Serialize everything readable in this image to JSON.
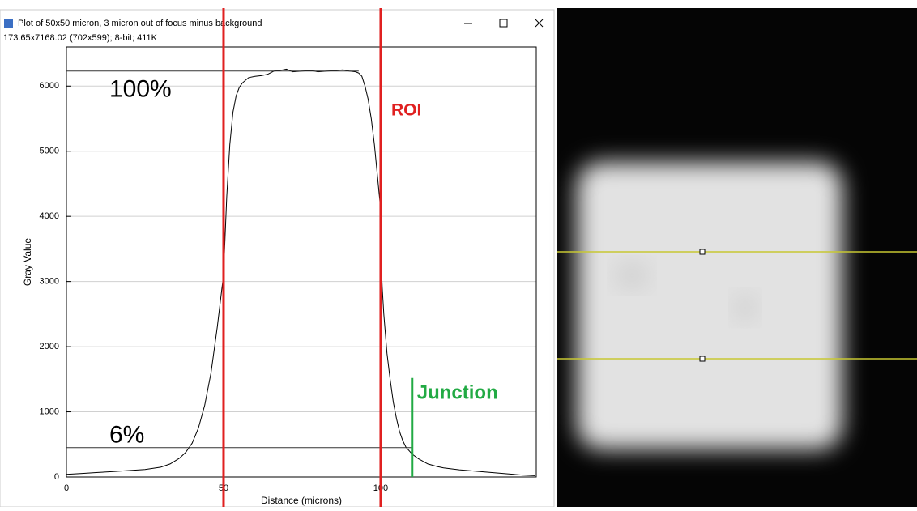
{
  "window": {
    "title": "Plot of 50x50 micron, 3 micron out of focus minus background",
    "info": "173.65x7168.02  (702x599); 8-bit; 411K"
  },
  "chart_data": {
    "type": "line",
    "xlabel": "Distance (microns)",
    "ylabel": "Gray Value",
    "color": "#000000",
    "x": [
      0,
      5,
      10,
      15,
      20,
      25,
      30,
      33,
      36,
      38,
      40,
      42,
      44,
      46,
      48,
      49.5,
      50,
      50.5,
      51,
      52,
      53,
      54,
      55,
      56,
      58,
      60,
      62,
      64,
      66,
      68,
      70,
      72,
      75,
      78,
      80,
      83,
      86,
      88,
      90,
      92,
      93,
      94,
      95,
      96,
      97,
      98,
      99,
      99.8,
      100,
      100.5,
      101,
      102,
      103,
      104,
      105,
      106,
      107,
      108,
      110,
      112,
      115,
      118,
      120,
      125,
      130,
      135,
      140,
      145,
      149
    ],
    "values": [
      40,
      55,
      70,
      85,
      100,
      115,
      150,
      200,
      290,
      380,
      520,
      750,
      1100,
      1600,
      2300,
      2900,
      3100,
      3700,
      4300,
      5100,
      5600,
      5850,
      5980,
      6050,
      6130,
      6150,
      6160,
      6180,
      6230,
      6240,
      6260,
      6220,
      6230,
      6240,
      6220,
      6230,
      6240,
      6250,
      6230,
      6220,
      6200,
      6150,
      6000,
      5800,
      5500,
      5100,
      4600,
      4200,
      3450,
      2900,
      2500,
      1900,
      1500,
      1150,
      900,
      700,
      560,
      460,
      350,
      280,
      200,
      160,
      140,
      110,
      90,
      70,
      50,
      30,
      20
    ],
    "xlim": [
      0,
      149.5
    ],
    "ylim": [
      0,
      6600
    ],
    "xticks": [
      0,
      50,
      100
    ],
    "yticks": [
      0,
      1000,
      2000,
      3000,
      4000,
      5000,
      6000
    ],
    "grid": true,
    "reference_lines": [
      {
        "label": "100%",
        "y": 6230,
        "x_end": 93
      },
      {
        "label": "6%",
        "y": 450,
        "x_end": 110
      }
    ],
    "roi": {
      "label": "ROI",
      "x": [
        50,
        100
      ]
    },
    "junction": {
      "label": "Junction",
      "x": 110,
      "y_top": 1520
    }
  }
}
